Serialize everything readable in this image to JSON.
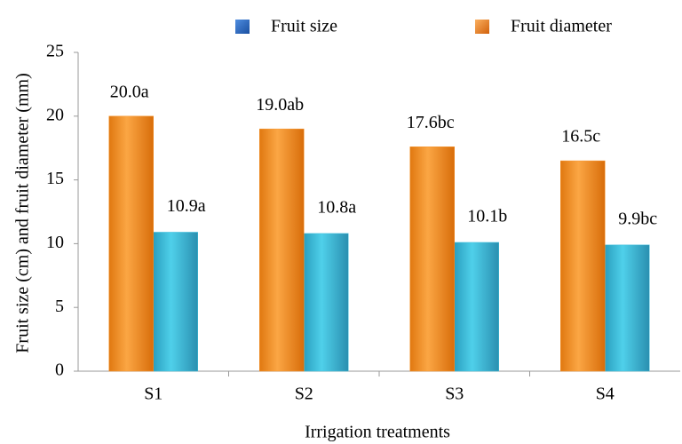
{
  "chart_data": {
    "type": "bar",
    "x_label": "Irrigation treatments",
    "y_label": "Fruit size (cm) and fruit diameter (mm)",
    "categories": [
      "S1",
      "S2",
      "S3",
      "S4"
    ],
    "series": [
      {
        "name": "Fruit size",
        "color": "#3fbfdc",
        "values": [
          10.9,
          10.8,
          10.1,
          9.9
        ],
        "value_labels": [
          "10.9a",
          "10.8a",
          "10.1b",
          "9.9bc"
        ]
      },
      {
        "name": "Fruit diameter",
        "color": "#f7942a",
        "values": [
          20.0,
          19.0,
          17.6,
          16.5
        ],
        "value_labels": [
          "20.0a",
          "19.0ab",
          "17.6bc",
          "16.5c"
        ]
      }
    ],
    "ylim": [
      0,
      25
    ],
    "yticks": [
      0,
      5,
      10,
      15,
      20,
      25
    ],
    "grid": false,
    "legend": "top"
  }
}
